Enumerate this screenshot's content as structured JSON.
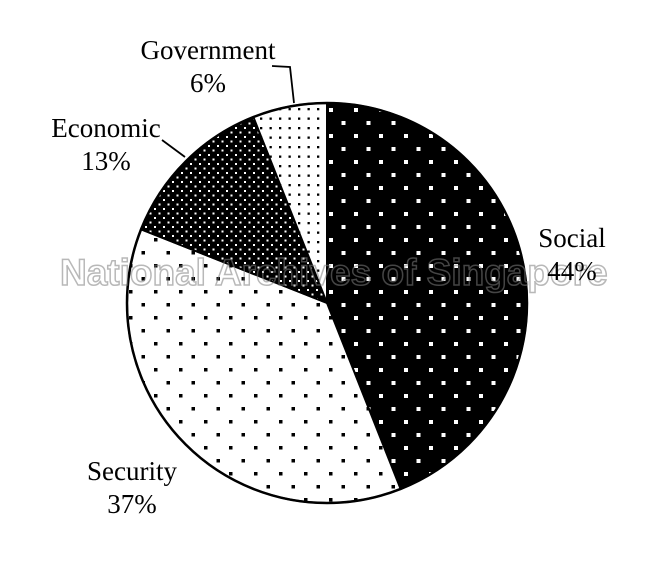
{
  "figure": {
    "background": "#ffffff"
  },
  "watermark": {
    "text": "National Archives of Singapore"
  },
  "chart_data": {
    "type": "pie",
    "title": "",
    "start": "12-oclock",
    "direction": "clockwise",
    "center": [
      327,
      303
    ],
    "radius": 200,
    "legend": "none",
    "slices": [
      {
        "id": "social",
        "label": "Social",
        "value": 44,
        "pct_label": "44%",
        "fill_pattern": "black-with-white-square-dots"
      },
      {
        "id": "security",
        "label": "Security",
        "value": 37,
        "pct_label": "37%",
        "fill_pattern": "white-with-black-square-dots"
      },
      {
        "id": "economic",
        "label": "Economic",
        "value": 13,
        "pct_label": "13%",
        "fill_pattern": "black-with-dense-fine-white-dots"
      },
      {
        "id": "government",
        "label": "Government",
        "value": 6,
        "pct_label": "6%",
        "fill_pattern": "white-with-fine-black-dots"
      }
    ],
    "colors": {
      "ink": "#000000",
      "background": "#ffffff",
      "watermark_stroke": "#c9c9c9"
    }
  }
}
